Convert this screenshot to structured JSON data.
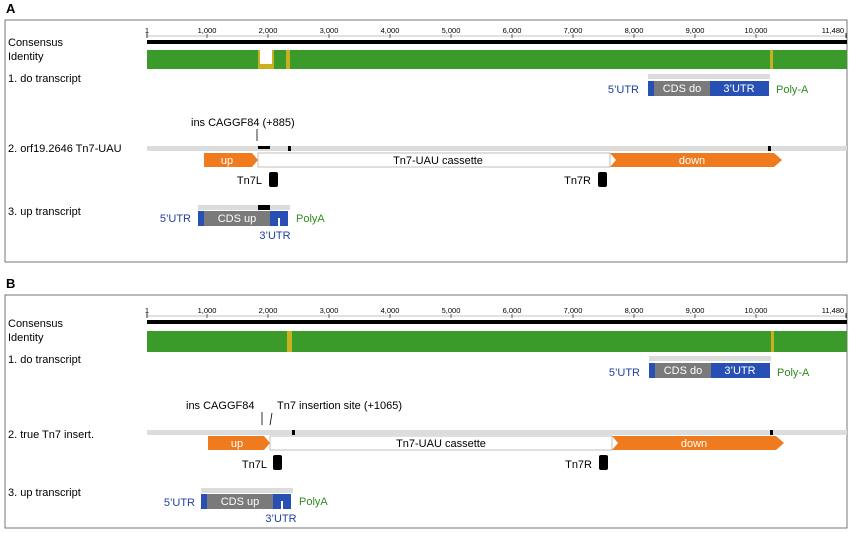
{
  "panels": [
    {
      "letter": "A",
      "tick_labels": [
        "1",
        "1,000",
        "2,000",
        "3,000",
        "4,000",
        "5,000",
        "6,000",
        "7,000",
        "8,000",
        "9,000",
        "10,000",
        "11,480"
      ],
      "track_labels": {
        "consensus": "Consensus",
        "identity": "Identity",
        "do_transcript": "1. do transcript",
        "construct": "2. orf19.2646 Tn7-UAU",
        "up_transcript": "3. up transcript"
      },
      "annotations": {
        "utr5_do": "5'UTR",
        "cds_do": "CDS do",
        "utr3_do": "3'UTR",
        "polya_do": "Poly-A",
        "ins": "ins CAGGF84  (+885)",
        "up": "up",
        "cassette": "Tn7-UAU cassette",
        "down": "down",
        "tn7l": "Tn7L",
        "tn7r": "Tn7R",
        "utr5_up": "5'UTR",
        "cds_up": "CDS up",
        "utr3_up": "3'UTR",
        "polya_up": "PolyA"
      }
    },
    {
      "letter": "B",
      "tick_labels": [
        "1",
        "1,000",
        "2,000",
        "3,000",
        "4,000",
        "5,000",
        "6,000",
        "7,000",
        "8,000",
        "9,000",
        "10,000",
        "11,480"
      ],
      "track_labels": {
        "consensus": "Consensus",
        "identity": "Identity",
        "do_transcript": "1. do transcript",
        "construct": "2. true Tn7 insert.",
        "up_transcript": "3. up transcript"
      },
      "annotations": {
        "utr5_do": "5'UTR",
        "cds_do": "CDS do",
        "utr3_do": "3'UTR",
        "polya_do": "Poly-A",
        "ins": "ins CAGGF84",
        "insertion_site": "Tn7 insertion site (+1065)",
        "up": "up",
        "cassette": "Tn7-UAU cassette",
        "down": "down",
        "tn7l": "Tn7L",
        "tn7r": "Tn7R",
        "utr5_up": "5'UTR",
        "cds_up": "CDS up",
        "utr3_up": "3'UTR",
        "polya_up": "PolyA"
      }
    }
  ],
  "colors": {
    "identity_green": "#3a9a2a",
    "gene_orange": "#f07a1e",
    "cds_gray": "#7a7a7a",
    "utr_blue": "#2850b4",
    "track_gray": "#dcdcdc",
    "label_blue": "#1f3fa0",
    "label_green": "#2e8b1e"
  }
}
